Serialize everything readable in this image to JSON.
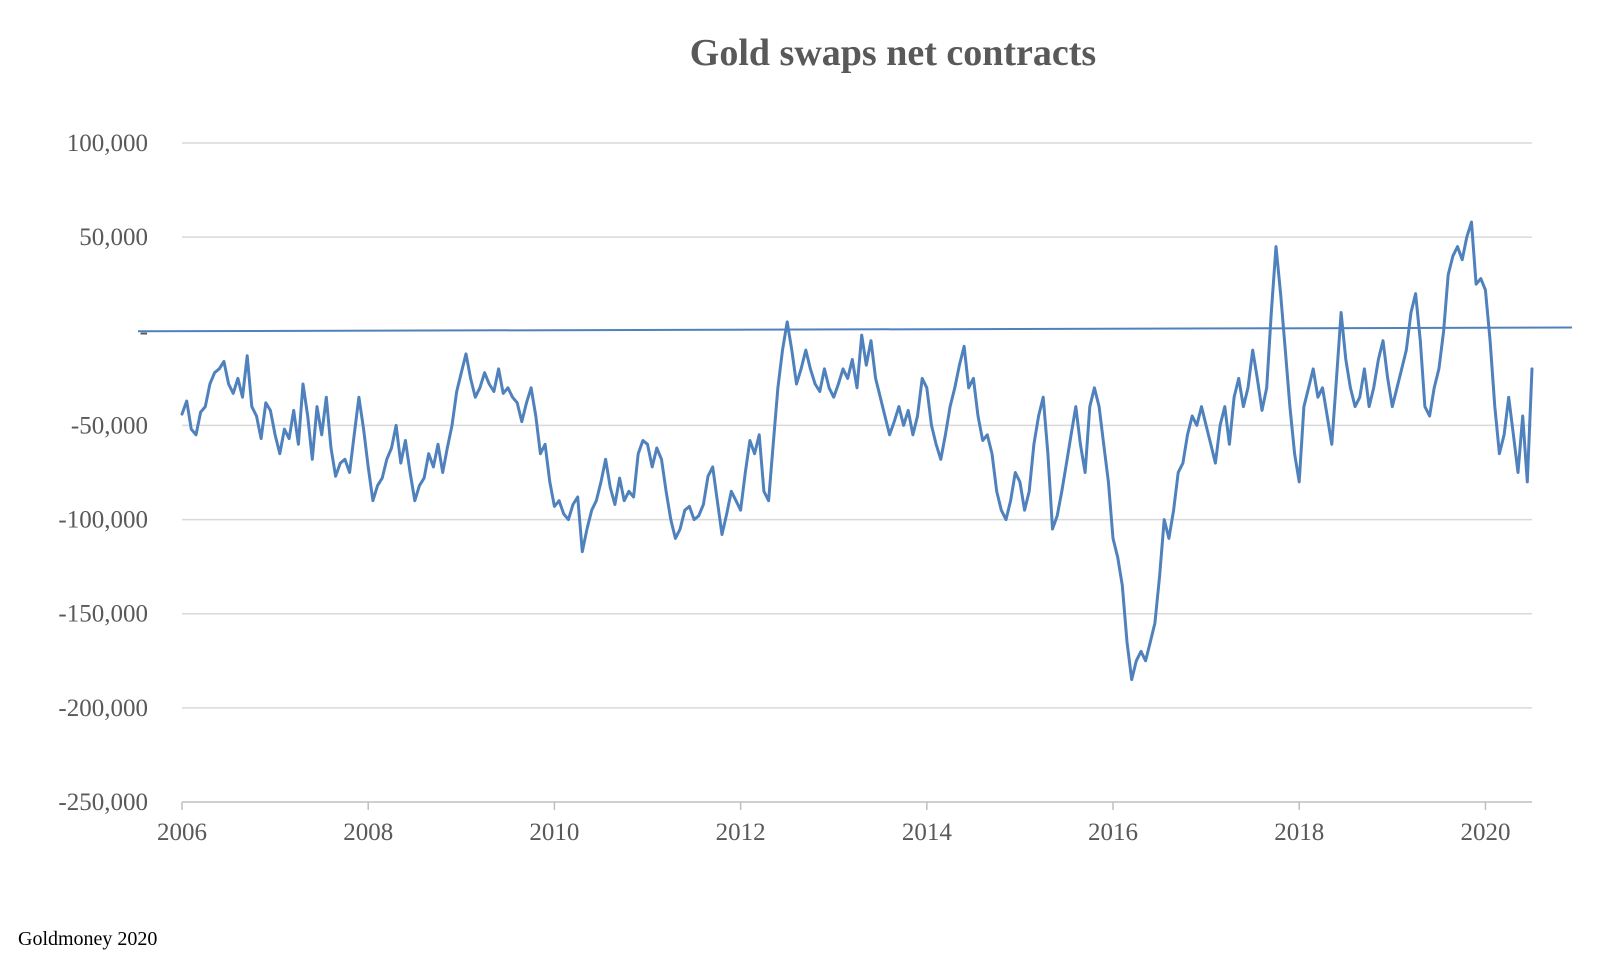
{
  "chart_data": {
    "type": "line",
    "title": "Gold swaps net  contracts",
    "xlabel": "",
    "ylabel": "",
    "xlim": [
      2006,
      2020.5
    ],
    "ylim": [
      -250000,
      100000
    ],
    "grid": true,
    "legend": "none",
    "x_ticks": [
      2006,
      2008,
      2010,
      2012,
      2014,
      2016,
      2018,
      2020
    ],
    "y_ticks": [
      {
        "value": 100000,
        "label": "100,000"
      },
      {
        "value": 50000,
        "label": "50,000"
      },
      {
        "value": 0,
        "label": "-"
      },
      {
        "value": -50000,
        "label": "-50,000"
      },
      {
        "value": -100000,
        "label": "-100,000"
      },
      {
        "value": -150000,
        "label": "-150,000"
      },
      {
        "value": -200000,
        "label": "-200,000"
      },
      {
        "value": -250000,
        "label": "-250,000"
      }
    ],
    "series": [
      {
        "color": "#4f81bd",
        "points": [
          [
            2006.0,
            -44000
          ],
          [
            2006.05,
            -37000
          ],
          [
            2006.1,
            -52000
          ],
          [
            2006.15,
            -55000
          ],
          [
            2006.2,
            -43000
          ],
          [
            2006.25,
            -40000
          ],
          [
            2006.3,
            -28000
          ],
          [
            2006.35,
            -22000
          ],
          [
            2006.4,
            -20000
          ],
          [
            2006.45,
            -16000
          ],
          [
            2006.5,
            -28000
          ],
          [
            2006.55,
            -33000
          ],
          [
            2006.6,
            -25000
          ],
          [
            2006.65,
            -35000
          ],
          [
            2006.7,
            -13000
          ],
          [
            2006.75,
            -40000
          ],
          [
            2006.8,
            -45000
          ],
          [
            2006.85,
            -57000
          ],
          [
            2006.9,
            -38000
          ],
          [
            2006.95,
            -42000
          ],
          [
            2007.0,
            -55000
          ],
          [
            2007.05,
            -65000
          ],
          [
            2007.1,
            -52000
          ],
          [
            2007.15,
            -57000
          ],
          [
            2007.2,
            -42000
          ],
          [
            2007.25,
            -60000
          ],
          [
            2007.3,
            -28000
          ],
          [
            2007.35,
            -45000
          ],
          [
            2007.4,
            -68000
          ],
          [
            2007.45,
            -40000
          ],
          [
            2007.5,
            -55000
          ],
          [
            2007.55,
            -35000
          ],
          [
            2007.6,
            -62000
          ],
          [
            2007.65,
            -77000
          ],
          [
            2007.7,
            -70000
          ],
          [
            2007.75,
            -68000
          ],
          [
            2007.8,
            -75000
          ],
          [
            2007.85,
            -55000
          ],
          [
            2007.9,
            -35000
          ],
          [
            2007.95,
            -52000
          ],
          [
            2008.0,
            -72000
          ],
          [
            2008.05,
            -90000
          ],
          [
            2008.1,
            -82000
          ],
          [
            2008.15,
            -78000
          ],
          [
            2008.2,
            -68000
          ],
          [
            2008.25,
            -62000
          ],
          [
            2008.3,
            -50000
          ],
          [
            2008.35,
            -70000
          ],
          [
            2008.4,
            -58000
          ],
          [
            2008.45,
            -75000
          ],
          [
            2008.5,
            -90000
          ],
          [
            2008.55,
            -82000
          ],
          [
            2008.6,
            -78000
          ],
          [
            2008.65,
            -65000
          ],
          [
            2008.7,
            -72000
          ],
          [
            2008.75,
            -60000
          ],
          [
            2008.8,
            -75000
          ],
          [
            2008.85,
            -62000
          ],
          [
            2008.9,
            -50000
          ],
          [
            2008.95,
            -32000
          ],
          [
            2009.0,
            -22000
          ],
          [
            2009.05,
            -12000
          ],
          [
            2009.1,
            -25000
          ],
          [
            2009.15,
            -35000
          ],
          [
            2009.2,
            -30000
          ],
          [
            2009.25,
            -22000
          ],
          [
            2009.3,
            -28000
          ],
          [
            2009.35,
            -32000
          ],
          [
            2009.4,
            -20000
          ],
          [
            2009.45,
            -33000
          ],
          [
            2009.5,
            -30000
          ],
          [
            2009.55,
            -35000
          ],
          [
            2009.6,
            -38000
          ],
          [
            2009.65,
            -48000
          ],
          [
            2009.7,
            -38000
          ],
          [
            2009.75,
            -30000
          ],
          [
            2009.8,
            -45000
          ],
          [
            2009.85,
            -65000
          ],
          [
            2009.9,
            -60000
          ],
          [
            2009.95,
            -80000
          ],
          [
            2010.0,
            -93000
          ],
          [
            2010.05,
            -90000
          ],
          [
            2010.1,
            -97000
          ],
          [
            2010.15,
            -100000
          ],
          [
            2010.2,
            -92000
          ],
          [
            2010.25,
            -88000
          ],
          [
            2010.3,
            -117000
          ],
          [
            2010.35,
            -105000
          ],
          [
            2010.4,
            -95000
          ],
          [
            2010.45,
            -90000
          ],
          [
            2010.5,
            -80000
          ],
          [
            2010.55,
            -68000
          ],
          [
            2010.6,
            -83000
          ],
          [
            2010.65,
            -92000
          ],
          [
            2010.7,
            -78000
          ],
          [
            2010.75,
            -90000
          ],
          [
            2010.8,
            -85000
          ],
          [
            2010.85,
            -88000
          ],
          [
            2010.9,
            -65000
          ],
          [
            2010.95,
            -58000
          ],
          [
            2011.0,
            -60000
          ],
          [
            2011.05,
            -72000
          ],
          [
            2011.1,
            -62000
          ],
          [
            2011.15,
            -68000
          ],
          [
            2011.2,
            -85000
          ],
          [
            2011.25,
            -100000
          ],
          [
            2011.3,
            -110000
          ],
          [
            2011.35,
            -105000
          ],
          [
            2011.4,
            -95000
          ],
          [
            2011.45,
            -93000
          ],
          [
            2011.5,
            -100000
          ],
          [
            2011.55,
            -98000
          ],
          [
            2011.6,
            -92000
          ],
          [
            2011.65,
            -77000
          ],
          [
            2011.7,
            -72000
          ],
          [
            2011.75,
            -90000
          ],
          [
            2011.8,
            -108000
          ],
          [
            2011.85,
            -97000
          ],
          [
            2011.9,
            -85000
          ],
          [
            2011.95,
            -90000
          ],
          [
            2012.0,
            -95000
          ],
          [
            2012.05,
            -75000
          ],
          [
            2012.1,
            -58000
          ],
          [
            2012.15,
            -65000
          ],
          [
            2012.2,
            -55000
          ],
          [
            2012.25,
            -85000
          ],
          [
            2012.3,
            -90000
          ],
          [
            2012.35,
            -60000
          ],
          [
            2012.4,
            -30000
          ],
          [
            2012.45,
            -10000
          ],
          [
            2012.5,
            5000
          ],
          [
            2012.55,
            -10000
          ],
          [
            2012.6,
            -28000
          ],
          [
            2012.65,
            -20000
          ],
          [
            2012.7,
            -10000
          ],
          [
            2012.75,
            -20000
          ],
          [
            2012.8,
            -28000
          ],
          [
            2012.85,
            -32000
          ],
          [
            2012.9,
            -20000
          ],
          [
            2012.95,
            -30000
          ],
          [
            2013.0,
            -35000
          ],
          [
            2013.05,
            -28000
          ],
          [
            2013.1,
            -20000
          ],
          [
            2013.15,
            -25000
          ],
          [
            2013.2,
            -15000
          ],
          [
            2013.25,
            -30000
          ],
          [
            2013.3,
            -2000
          ],
          [
            2013.35,
            -18000
          ],
          [
            2013.4,
            -5000
          ],
          [
            2013.45,
            -25000
          ],
          [
            2013.5,
            -35000
          ],
          [
            2013.55,
            -45000
          ],
          [
            2013.6,
            -55000
          ],
          [
            2013.65,
            -48000
          ],
          [
            2013.7,
            -40000
          ],
          [
            2013.75,
            -50000
          ],
          [
            2013.8,
            -42000
          ],
          [
            2013.85,
            -55000
          ],
          [
            2013.9,
            -45000
          ],
          [
            2013.95,
            -25000
          ],
          [
            2014.0,
            -30000
          ],
          [
            2014.05,
            -50000
          ],
          [
            2014.1,
            -60000
          ],
          [
            2014.15,
            -68000
          ],
          [
            2014.2,
            -55000
          ],
          [
            2014.25,
            -40000
          ],
          [
            2014.3,
            -30000
          ],
          [
            2014.35,
            -18000
          ],
          [
            2014.4,
            -8000
          ],
          [
            2014.45,
            -30000
          ],
          [
            2014.5,
            -25000
          ],
          [
            2014.55,
            -45000
          ],
          [
            2014.6,
            -58000
          ],
          [
            2014.65,
            -55000
          ],
          [
            2014.7,
            -65000
          ],
          [
            2014.75,
            -85000
          ],
          [
            2014.8,
            -95000
          ],
          [
            2014.85,
            -100000
          ],
          [
            2014.9,
            -90000
          ],
          [
            2014.95,
            -75000
          ],
          [
            2015.0,
            -80000
          ],
          [
            2015.05,
            -95000
          ],
          [
            2015.1,
            -85000
          ],
          [
            2015.15,
            -60000
          ],
          [
            2015.2,
            -45000
          ],
          [
            2015.25,
            -35000
          ],
          [
            2015.3,
            -65000
          ],
          [
            2015.35,
            -105000
          ],
          [
            2015.4,
            -98000
          ],
          [
            2015.45,
            -85000
          ],
          [
            2015.5,
            -70000
          ],
          [
            2015.55,
            -55000
          ],
          [
            2015.6,
            -40000
          ],
          [
            2015.65,
            -60000
          ],
          [
            2015.7,
            -75000
          ],
          [
            2015.75,
            -40000
          ],
          [
            2015.8,
            -30000
          ],
          [
            2015.85,
            -40000
          ],
          [
            2015.9,
            -60000
          ],
          [
            2015.95,
            -80000
          ],
          [
            2016.0,
            -110000
          ],
          [
            2016.05,
            -120000
          ],
          [
            2016.1,
            -135000
          ],
          [
            2016.15,
            -165000
          ],
          [
            2016.2,
            -185000
          ],
          [
            2016.25,
            -175000
          ],
          [
            2016.3,
            -170000
          ],
          [
            2016.35,
            -175000
          ],
          [
            2016.4,
            -165000
          ],
          [
            2016.45,
            -155000
          ],
          [
            2016.5,
            -130000
          ],
          [
            2016.55,
            -100000
          ],
          [
            2016.6,
            -110000
          ],
          [
            2016.65,
            -95000
          ],
          [
            2016.7,
            -75000
          ],
          [
            2016.75,
            -70000
          ],
          [
            2016.8,
            -55000
          ],
          [
            2016.85,
            -45000
          ],
          [
            2016.9,
            -50000
          ],
          [
            2016.95,
            -40000
          ],
          [
            2017.0,
            -50000
          ],
          [
            2017.05,
            -60000
          ],
          [
            2017.1,
            -70000
          ],
          [
            2017.15,
            -50000
          ],
          [
            2017.2,
            -40000
          ],
          [
            2017.25,
            -60000
          ],
          [
            2017.3,
            -35000
          ],
          [
            2017.35,
            -25000
          ],
          [
            2017.4,
            -40000
          ],
          [
            2017.45,
            -30000
          ],
          [
            2017.5,
            -10000
          ],
          [
            2017.55,
            -25000
          ],
          [
            2017.6,
            -42000
          ],
          [
            2017.65,
            -30000
          ],
          [
            2017.7,
            10000
          ],
          [
            2017.75,
            45000
          ],
          [
            2017.8,
            20000
          ],
          [
            2017.85,
            -10000
          ],
          [
            2017.9,
            -40000
          ],
          [
            2017.95,
            -65000
          ],
          [
            2018.0,
            -80000
          ],
          [
            2018.05,
            -40000
          ],
          [
            2018.1,
            -30000
          ],
          [
            2018.15,
            -20000
          ],
          [
            2018.2,
            -35000
          ],
          [
            2018.25,
            -30000
          ],
          [
            2018.3,
            -45000
          ],
          [
            2018.35,
            -60000
          ],
          [
            2018.4,
            -25000
          ],
          [
            2018.45,
            10000
          ],
          [
            2018.5,
            -15000
          ],
          [
            2018.55,
            -30000
          ],
          [
            2018.6,
            -40000
          ],
          [
            2018.65,
            -35000
          ],
          [
            2018.7,
            -20000
          ],
          [
            2018.75,
            -40000
          ],
          [
            2018.8,
            -30000
          ],
          [
            2018.85,
            -15000
          ],
          [
            2018.9,
            -5000
          ],
          [
            2018.95,
            -25000
          ],
          [
            2019.0,
            -40000
          ],
          [
            2019.05,
            -30000
          ],
          [
            2019.1,
            -20000
          ],
          [
            2019.15,
            -10000
          ],
          [
            2019.2,
            10000
          ],
          [
            2019.25,
            20000
          ],
          [
            2019.3,
            -5000
          ],
          [
            2019.35,
            -40000
          ],
          [
            2019.4,
            -45000
          ],
          [
            2019.45,
            -30000
          ],
          [
            2019.5,
            -20000
          ],
          [
            2019.55,
            0
          ],
          [
            2019.6,
            30000
          ],
          [
            2019.65,
            40000
          ],
          [
            2019.7,
            45000
          ],
          [
            2019.75,
            38000
          ],
          [
            2019.8,
            50000
          ],
          [
            2019.85,
            58000
          ],
          [
            2019.9,
            25000
          ],
          [
            2019.95,
            28000
          ],
          [
            2020.0,
            22000
          ],
          [
            2020.05,
            -5000
          ],
          [
            2020.1,
            -40000
          ],
          [
            2020.15,
            -65000
          ],
          [
            2020.2,
            -55000
          ],
          [
            2020.25,
            -35000
          ],
          [
            2020.3,
            -55000
          ],
          [
            2020.35,
            -75000
          ],
          [
            2020.4,
            -45000
          ],
          [
            2020.45,
            -80000
          ],
          [
            2020.5,
            -20000
          ]
        ]
      }
    ],
    "reference_line": {
      "y_start": 0,
      "y_end": 2000,
      "color": "#4f81bd"
    }
  },
  "source": "Goldmoney 2020"
}
